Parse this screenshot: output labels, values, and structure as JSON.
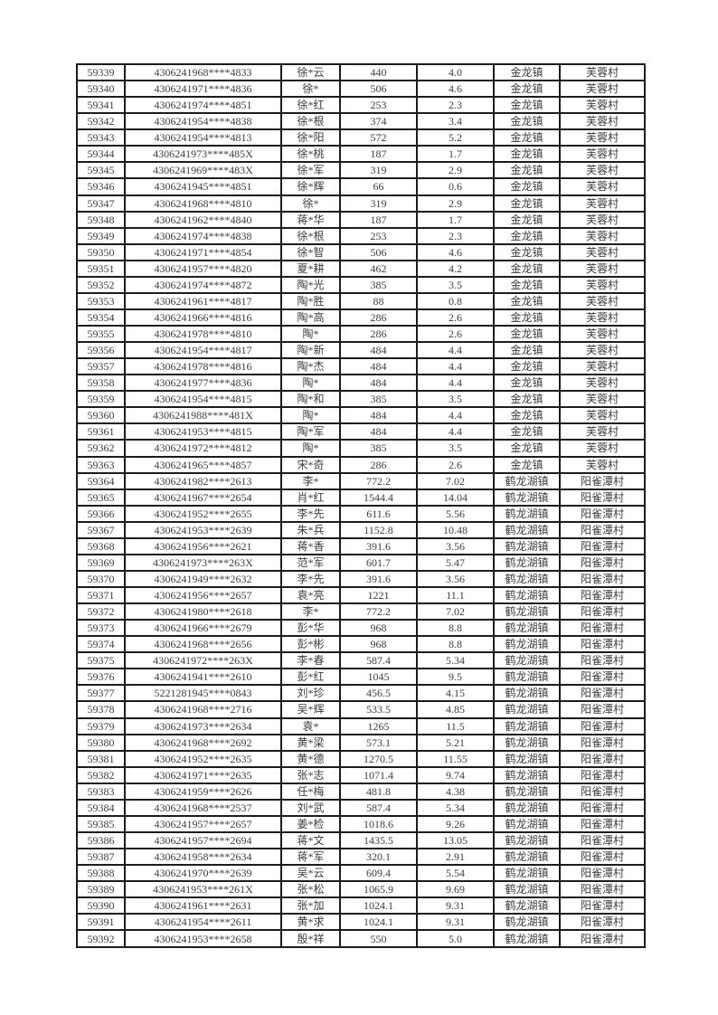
{
  "colors": {
    "page_background": "#ffffff",
    "table_border": "#1c1c1c",
    "cell_text": "#3d3d3d"
  },
  "table": {
    "columns": [
      {
        "key": "serial",
        "name": "serial-number-cell"
      },
      {
        "key": "id",
        "name": "id-number-cell"
      },
      {
        "key": "name",
        "name": "person-name-cell"
      },
      {
        "key": "amount",
        "name": "amount-cell"
      },
      {
        "key": "area",
        "name": "area-cell"
      },
      {
        "key": "town",
        "name": "town-cell"
      },
      {
        "key": "village",
        "name": "village-cell"
      }
    ],
    "rows": [
      [
        "59339",
        "4306241968****4833",
        "徐*云",
        "440",
        "4.0",
        "金龙镇",
        "芙蓉村"
      ],
      [
        "59340",
        "4306241971****4836",
        "徐*",
        "506",
        "4.6",
        "金龙镇",
        "芙蓉村"
      ],
      [
        "59341",
        "4306241974****4851",
        "徐*红",
        "253",
        "2.3",
        "金龙镇",
        "芙蓉村"
      ],
      [
        "59342",
        "4306241954****4838",
        "徐*根",
        "374",
        "3.4",
        "金龙镇",
        "芙蓉村"
      ],
      [
        "59343",
        "4306241954****4813",
        "徐*阳",
        "572",
        "5.2",
        "金龙镇",
        "芙蓉村"
      ],
      [
        "59344",
        "4306241973****485X",
        "徐*桃",
        "187",
        "1.7",
        "金龙镇",
        "芙蓉村"
      ],
      [
        "59345",
        "4306241969****483X",
        "徐*军",
        "319",
        "2.9",
        "金龙镇",
        "芙蓉村"
      ],
      [
        "59346",
        "4306241945****4851",
        "徐*辉",
        "66",
        "0.6",
        "金龙镇",
        "芙蓉村"
      ],
      [
        "59347",
        "4306241968****4810",
        "徐*",
        "319",
        "2.9",
        "金龙镇",
        "芙蓉村"
      ],
      [
        "59348",
        "4306241962****4840",
        "蒋*华",
        "187",
        "1.7",
        "金龙镇",
        "芙蓉村"
      ],
      [
        "59349",
        "4306241974****4838",
        "徐*根",
        "253",
        "2.3",
        "金龙镇",
        "芙蓉村"
      ],
      [
        "59350",
        "4306241971****4854",
        "徐*智",
        "506",
        "4.6",
        "金龙镇",
        "芙蓉村"
      ],
      [
        "59351",
        "4306241957****4820",
        "夏*耕",
        "462",
        "4.2",
        "金龙镇",
        "芙蓉村"
      ],
      [
        "59352",
        "4306241974****4872",
        "陶*光",
        "385",
        "3.5",
        "金龙镇",
        "芙蓉村"
      ],
      [
        "59353",
        "4306241961****4817",
        "陶*胜",
        "88",
        "0.8",
        "金龙镇",
        "芙蓉村"
      ],
      [
        "59354",
        "4306241966****4816",
        "陶*高",
        "286",
        "2.6",
        "金龙镇",
        "芙蓉村"
      ],
      [
        "59355",
        "4306241978****4810",
        "陶*",
        "286",
        "2.6",
        "金龙镇",
        "芙蓉村"
      ],
      [
        "59356",
        "4306241954****4817",
        "陶*新",
        "484",
        "4.4",
        "金龙镇",
        "芙蓉村"
      ],
      [
        "59357",
        "4306241978****4816",
        "陶*杰",
        "484",
        "4.4",
        "金龙镇",
        "芙蓉村"
      ],
      [
        "59358",
        "4306241977****4836",
        "陶*",
        "484",
        "4.4",
        "金龙镇",
        "芙蓉村"
      ],
      [
        "59359",
        "4306241954****4815",
        "陶*和",
        "385",
        "3.5",
        "金龙镇",
        "芙蓉村"
      ],
      [
        "59360",
        "4306241988****481X",
        "陶*",
        "484",
        "4.4",
        "金龙镇",
        "芙蓉村"
      ],
      [
        "59361",
        "4306241953****4815",
        "陶*军",
        "484",
        "4.4",
        "金龙镇",
        "芙蓉村"
      ],
      [
        "59362",
        "4306241972****4812",
        "陶*",
        "385",
        "3.5",
        "金龙镇",
        "芙蓉村"
      ],
      [
        "59363",
        "4306241965****4857",
        "宋*奇",
        "286",
        "2.6",
        "金龙镇",
        "芙蓉村"
      ],
      [
        "59364",
        "4306241982****2613",
        "李*",
        "772.2",
        "7.02",
        "鹤龙湖镇",
        "阳雀潭村"
      ],
      [
        "59365",
        "4306241967****2654",
        "肖*红",
        "1544.4",
        "14.04",
        "鹤龙湖镇",
        "阳雀潭村"
      ],
      [
        "59366",
        "4306241952****2655",
        "李*先",
        "611.6",
        "5.56",
        "鹤龙湖镇",
        "阳雀潭村"
      ],
      [
        "59367",
        "4306241953****2639",
        "朱*兵",
        "1152.8",
        "10.48",
        "鹤龙湖镇",
        "阳雀潭村"
      ],
      [
        "59368",
        "4306241956****2621",
        "蒋*香",
        "391.6",
        "3.56",
        "鹤龙湖镇",
        "阳雀潭村"
      ],
      [
        "59369",
        "4306241973****263X",
        "范*军",
        "601.7",
        "5.47",
        "鹤龙湖镇",
        "阳雀潭村"
      ],
      [
        "59370",
        "4306241949****2632",
        "李*先",
        "391.6",
        "3.56",
        "鹤龙湖镇",
        "阳雀潭村"
      ],
      [
        "59371",
        "4306241956****2657",
        "袁*亮",
        "1221",
        "11.1",
        "鹤龙湖镇",
        "阳雀潭村"
      ],
      [
        "59372",
        "4306241980****2618",
        "李*",
        "772.2",
        "7.02",
        "鹤龙湖镇",
        "阳雀潭村"
      ],
      [
        "59373",
        "4306241966****2679",
        "彭*华",
        "968",
        "8.8",
        "鹤龙湖镇",
        "阳雀潭村"
      ],
      [
        "59374",
        "4306241968****2656",
        "彭*彬",
        "968",
        "8.8",
        "鹤龙湖镇",
        "阳雀潭村"
      ],
      [
        "59375",
        "4306241972****263X",
        "李*春",
        "587.4",
        "5.34",
        "鹤龙湖镇",
        "阳雀潭村"
      ],
      [
        "59376",
        "4306241941****2610",
        "彭*红",
        "1045",
        "9.5",
        "鹤龙湖镇",
        "阳雀潭村"
      ],
      [
        "59377",
        "5221281945****0843",
        "刘*珍",
        "456.5",
        "4.15",
        "鹤龙湖镇",
        "阳雀潭村"
      ],
      [
        "59378",
        "4306241968****2716",
        "吴*辉",
        "533.5",
        "4.85",
        "鹤龙湖镇",
        "阳雀潭村"
      ],
      [
        "59379",
        "4306241973****2634",
        "袁*",
        "1265",
        "11.5",
        "鹤龙湖镇",
        "阳雀潭村"
      ],
      [
        "59380",
        "4306241968****2692",
        "黄*梁",
        "573.1",
        "5.21",
        "鹤龙湖镇",
        "阳雀潭村"
      ],
      [
        "59381",
        "4306241952****2635",
        "黄*德",
        "1270.5",
        "11.55",
        "鹤龙湖镇",
        "阳雀潭村"
      ],
      [
        "59382",
        "4306241971****2635",
        "张*志",
        "1071.4",
        "9.74",
        "鹤龙湖镇",
        "阳雀潭村"
      ],
      [
        "59383",
        "4306241959****2626",
        "任*梅",
        "481.8",
        "4.38",
        "鹤龙湖镇",
        "阳雀潭村"
      ],
      [
        "59384",
        "4306241968****2537",
        "刘*武",
        "587.4",
        "5.34",
        "鹤龙湖镇",
        "阳雀潭村"
      ],
      [
        "59385",
        "4306241957****2657",
        "姜*检",
        "1018.6",
        "9.26",
        "鹤龙湖镇",
        "阳雀潭村"
      ],
      [
        "59386",
        "4306241957****2694",
        "蒋*文",
        "1435.5",
        "13.05",
        "鹤龙湖镇",
        "阳雀潭村"
      ],
      [
        "59387",
        "4306241958****2634",
        "蒋*军",
        "320.1",
        "2.91",
        "鹤龙湖镇",
        "阳雀潭村"
      ],
      [
        "59388",
        "4306241970****2639",
        "吴*云",
        "609.4",
        "5.54",
        "鹤龙湖镇",
        "阳雀潭村"
      ],
      [
        "59389",
        "4306241953****261X",
        "张*松",
        "1065.9",
        "9.69",
        "鹤龙湖镇",
        "阳雀潭村"
      ],
      [
        "59390",
        "4306241961****2631",
        "张*加",
        "1024.1",
        "9.31",
        "鹤龙湖镇",
        "阳雀潭村"
      ],
      [
        "59391",
        "4306241954****2611",
        "黄*求",
        "1024.1",
        "9.31",
        "鹤龙湖镇",
        "阳雀潭村"
      ],
      [
        "59392",
        "4306241953****2658",
        "殷*祥",
        "550",
        "5.0",
        "鹤龙湖镇",
        "阳雀潭村"
      ]
    ]
  }
}
